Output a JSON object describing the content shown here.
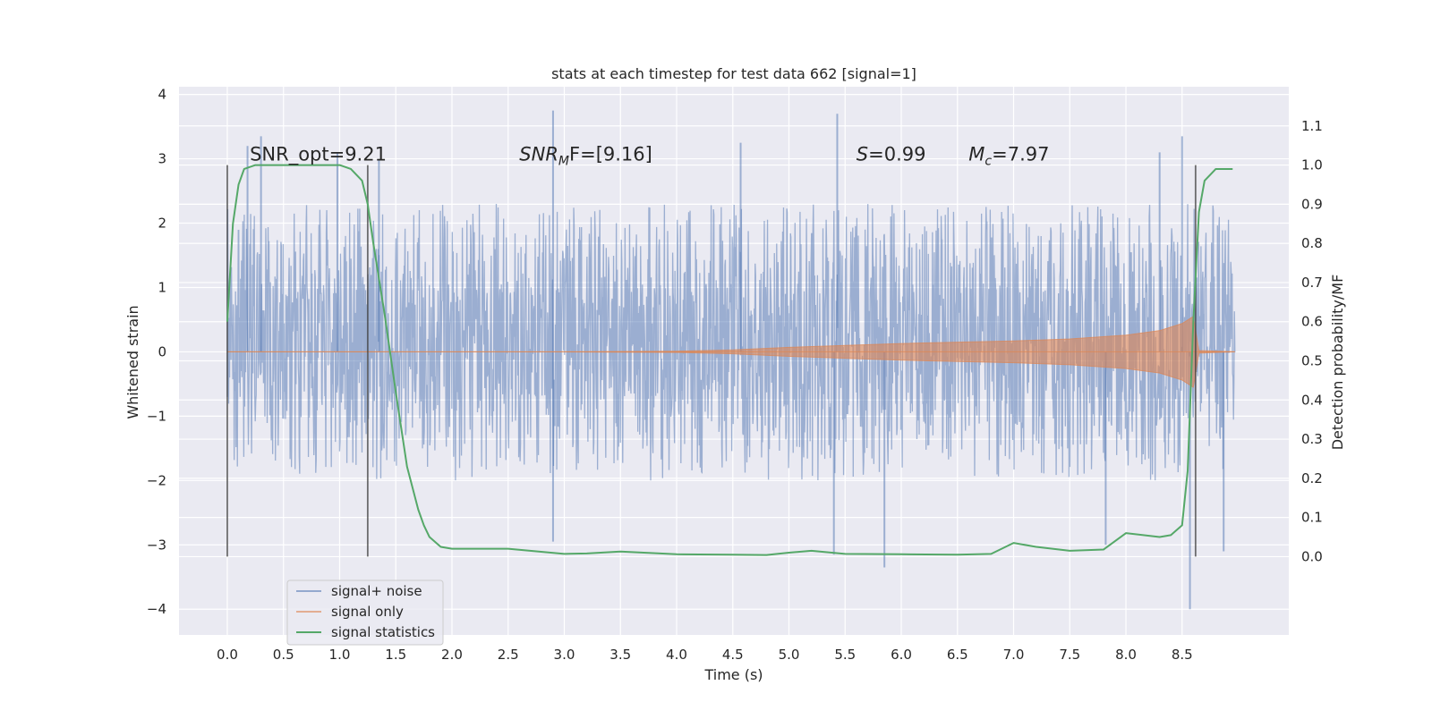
{
  "chart_data": {
    "type": "line",
    "title": "stats at each timestep for test data 662 [signal=1]",
    "xlabel": "Time (s)",
    "ylabel": "Whitened strain",
    "y2label": "Detection probability/MF",
    "xlim": [
      -0.43,
      9.45
    ],
    "ylim": [
      -4.4,
      4.12
    ],
    "y2lim": [
      -0.2,
      1.2
    ],
    "xticks": [
      0.0,
      0.5,
      1.0,
      1.5,
      2.0,
      2.5,
      3.0,
      3.5,
      4.0,
      4.5,
      5.0,
      5.5,
      6.0,
      6.5,
      7.0,
      7.5,
      8.0,
      8.5
    ],
    "xtick_labels": [
      "0.0",
      "0.5",
      "1.0",
      "1.5",
      "2.0",
      "2.5",
      "3.0",
      "3.5",
      "4.0",
      "4.5",
      "5.0",
      "5.5",
      "6.0",
      "6.5",
      "7.0",
      "7.5",
      "8.0",
      "8.5"
    ],
    "yticks": [
      -4,
      -3,
      -2,
      -1,
      0,
      1,
      2,
      3,
      4
    ],
    "ytick_labels": [
      "−4",
      "−3",
      "−2",
      "−1",
      "0",
      "1",
      "2",
      "3",
      "4"
    ],
    "y2ticks": [
      0.0,
      0.1,
      0.2,
      0.3,
      0.4,
      0.5,
      0.6,
      0.7,
      0.8,
      0.9,
      1.0,
      1.1
    ],
    "y2tick_labels": [
      "0.0",
      "0.1",
      "0.2",
      "0.3",
      "0.4",
      "0.5",
      "0.6",
      "0.7",
      "0.8",
      "0.9",
      "1.0",
      "1.1"
    ],
    "grid": true,
    "legend_position": "lower-left",
    "series": [
      {
        "name": "signal+ noise",
        "axis": "left",
        "color": "#4c72b0",
        "opacity": 0.5,
        "x_range": [
          0.0,
          8.97
        ],
        "y_range": [
          -4.0,
          3.75
        ],
        "typical_envelope": [
          -2.0,
          2.3
        ],
        "outlier_peaks": [
          {
            "x": 0.18,
            "y": 3.2
          },
          {
            "x": 0.3,
            "y": 3.35
          },
          {
            "x": 0.98,
            "y": 3.1
          },
          {
            "x": 1.35,
            "y": 3.0
          },
          {
            "x": 2.9,
            "y": 3.75
          },
          {
            "x": 4.57,
            "y": 3.25
          },
          {
            "x": 5.43,
            "y": 3.7
          },
          {
            "x": 8.3,
            "y": 3.1
          },
          {
            "x": 8.5,
            "y": 3.35
          },
          {
            "x": 5.85,
            "y": -3.35
          },
          {
            "x": 8.57,
            "y": -4.0
          },
          {
            "x": 7.82,
            "y": -3.0
          },
          {
            "x": 2.9,
            "y": -2.95
          },
          {
            "x": 5.4,
            "y": -3.15
          },
          {
            "x": 8.87,
            "y": -3.1
          }
        ]
      },
      {
        "name": "signal only",
        "axis": "left",
        "color": "#dd8452",
        "opacity": 0.6,
        "x": [
          0.0,
          1.0,
          2.0,
          3.0,
          4.0,
          4.5,
          5.0,
          5.5,
          6.0,
          6.5,
          7.0,
          7.5,
          8.0,
          8.3,
          8.5,
          8.6,
          8.65,
          8.97
        ],
        "amplitude": [
          0.0,
          0.0,
          0.0,
          0.0,
          0.01,
          0.03,
          0.07,
          0.1,
          0.13,
          0.15,
          0.17,
          0.2,
          0.26,
          0.33,
          0.44,
          0.55,
          0.02,
          0.0
        ]
      },
      {
        "name": "signal statistics",
        "axis": "right",
        "color": "#55a868",
        "x": [
          0.0,
          0.05,
          0.1,
          0.15,
          0.25,
          0.5,
          0.8,
          1.0,
          1.1,
          1.2,
          1.25,
          1.3,
          1.4,
          1.5,
          1.6,
          1.7,
          1.75,
          1.8,
          1.9,
          2.0,
          2.5,
          3.0,
          3.2,
          3.5,
          4.0,
          4.5,
          4.8,
          5.0,
          5.2,
          5.5,
          6.0,
          6.5,
          6.8,
          7.0,
          7.2,
          7.5,
          7.8,
          8.0,
          8.3,
          8.4,
          8.5,
          8.55,
          8.6,
          8.65,
          8.7,
          8.8,
          8.9,
          8.95
        ],
        "y": [
          0.6,
          0.85,
          0.95,
          0.99,
          1.0,
          1.0,
          1.0,
          1.0,
          0.99,
          0.96,
          0.9,
          0.8,
          0.62,
          0.42,
          0.23,
          0.12,
          0.08,
          0.05,
          0.025,
          0.02,
          0.02,
          0.007,
          0.008,
          0.013,
          0.006,
          0.005,
          0.004,
          0.01,
          0.015,
          0.007,
          0.006,
          0.005,
          0.007,
          0.035,
          0.025,
          0.015,
          0.018,
          0.06,
          0.05,
          0.055,
          0.08,
          0.22,
          0.6,
          0.88,
          0.96,
          0.99,
          0.99,
          0.99
        ]
      }
    ],
    "vertical_markers": [
      0.0,
      1.25,
      8.62
    ],
    "annotations": [
      {
        "text": "SNR_opt=9.21",
        "x": 0.2,
        "y": 3.0
      },
      {
        "text_main": "SNR",
        "text_sub": "M",
        "text_rest": "F=[9.16]",
        "x": 2.6,
        "y": 3.0
      },
      {
        "text_main": "S",
        "text_rest": "=0.99",
        "x": 5.6,
        "y": 3.0
      },
      {
        "text_main": "M",
        "text_sub": "c",
        "text_rest": "=7.97",
        "x": 6.6,
        "y": 3.0
      }
    ]
  }
}
